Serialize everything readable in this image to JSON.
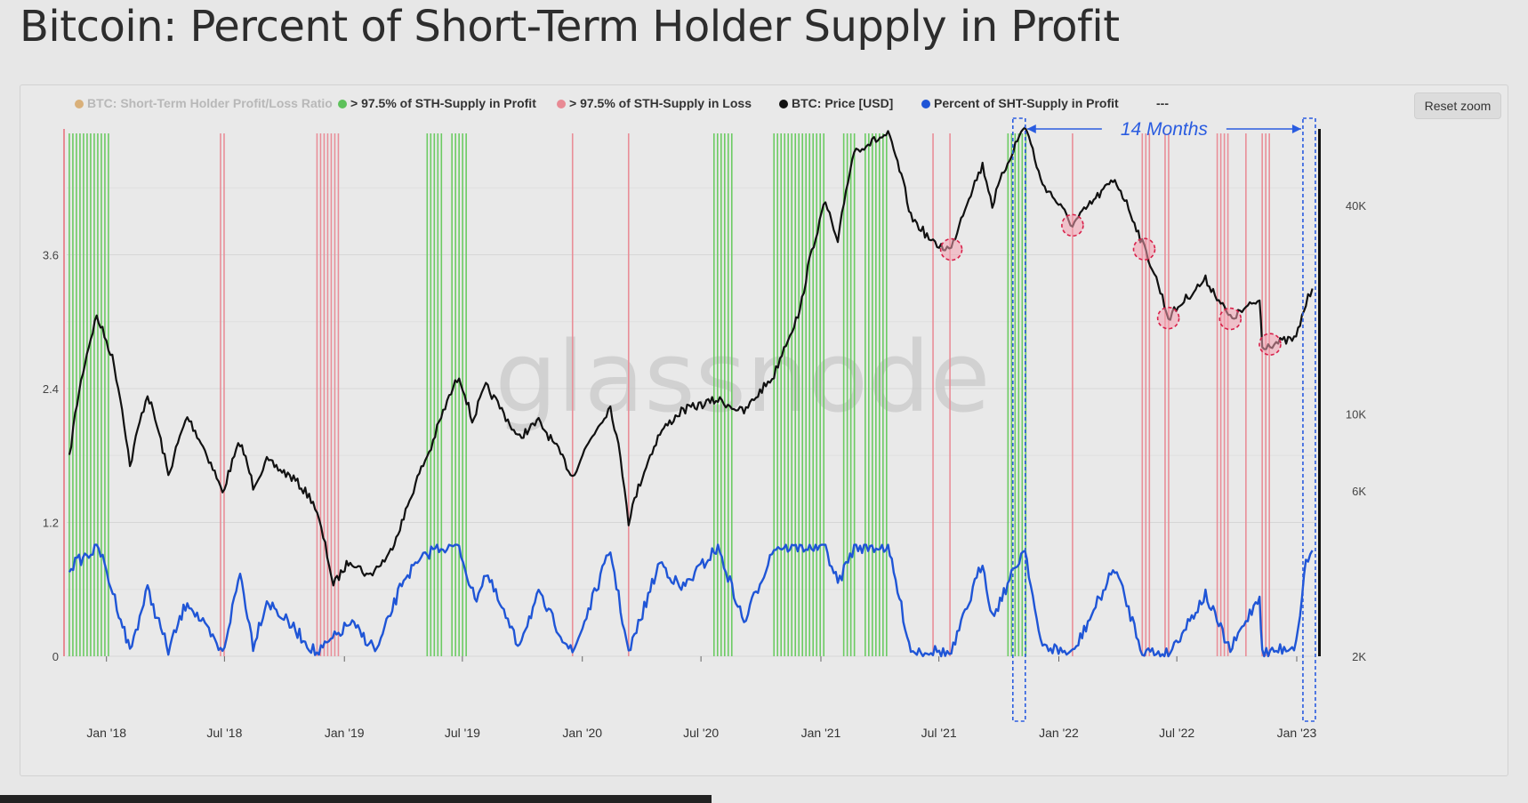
{
  "title": "Bitcoin: Percent of Short-Term Holder Supply in Profit",
  "reset_zoom_label": "Reset zoom",
  "watermark": "glassnode",
  "chart_data": {
    "type": "line",
    "legend_position": "top",
    "legend": [
      {
        "label": "BTC: Short-Term Holder Profit/Loss Ratio",
        "color": "#d9b07a",
        "active": false
      },
      {
        "label": "> 97.5% of STH-Supply in Profit",
        "color": "#5ec15b",
        "active": true
      },
      {
        "label": "> 97.5% of STH-Supply in Loss",
        "color": "#e88a94",
        "active": true
      },
      {
        "label": "BTC: Price [USD]",
        "color": "#111111",
        "active": true
      },
      {
        "label": "Percent of SHT-Supply in Profit",
        "color": "#1f55d6",
        "active": true
      },
      {
        "label": "---",
        "color": "#333333",
        "active": true
      }
    ],
    "x_ticks": [
      "Jan '18",
      "Jul '18",
      "Jan '19",
      "Jul '19",
      "Jan '20",
      "Jul '20",
      "Jan '21",
      "Jul '21",
      "Jan '22",
      "Jul '22",
      "Jan '23"
    ],
    "x_range": [
      "2017-11-01",
      "2023-01-31"
    ],
    "y_left_ticks": [
      "0",
      "1.2",
      "2.4",
      "3.6"
    ],
    "y_left_range": [
      0,
      4.8
    ],
    "y_right_ticks": [
      "2K",
      "6K",
      "10K",
      "40K"
    ],
    "y_right_scale": "log",
    "y_right_range": [
      2000,
      70000
    ],
    "series": [
      {
        "name": "BTC: Price [USD]",
        "color": "#111111",
        "axis": "right",
        "points": [
          [
            "2017-11-05",
            7400
          ],
          [
            "2017-12-17",
            19100
          ],
          [
            "2018-01-10",
            14500
          ],
          [
            "2018-02-06",
            7000
          ],
          [
            "2018-03-05",
            11400
          ],
          [
            "2018-04-06",
            6600
          ],
          [
            "2018-05-05",
            9800
          ],
          [
            "2018-06-28",
            5900
          ],
          [
            "2018-07-25",
            8300
          ],
          [
            "2018-08-14",
            6200
          ],
          [
            "2018-09-04",
            7300
          ],
          [
            "2018-10-15",
            6500
          ],
          [
            "2018-11-14",
            5600
          ],
          [
            "2018-12-15",
            3200
          ],
          [
            "2019-01-10",
            3800
          ],
          [
            "2019-02-07",
            3400
          ],
          [
            "2019-03-10",
            3900
          ],
          [
            "2019-04-02",
            5000
          ],
          [
            "2019-05-14",
            8000
          ],
          [
            "2019-06-26",
            12900
          ],
          [
            "2019-07-16",
            9500
          ],
          [
            "2019-08-06",
            12000
          ],
          [
            "2019-09-24",
            8500
          ],
          [
            "2019-10-26",
            9500
          ],
          [
            "2019-12-17",
            6600
          ],
          [
            "2020-02-13",
            10500
          ],
          [
            "2020-03-12",
            4900
          ],
          [
            "2020-04-29",
            8800
          ],
          [
            "2020-06-01",
            10200
          ],
          [
            "2020-07-27",
            11000
          ],
          [
            "2020-09-05",
            10100
          ],
          [
            "2020-10-21",
            12900
          ],
          [
            "2020-11-30",
            19700
          ],
          [
            "2021-01-08",
            40700
          ],
          [
            "2021-01-27",
            30500
          ],
          [
            "2021-02-21",
            57500
          ],
          [
            "2021-04-14",
            64000
          ],
          [
            "2021-05-19",
            37000
          ],
          [
            "2021-06-22",
            31000
          ],
          [
            "2021-07-20",
            29800
          ],
          [
            "2021-09-06",
            52000
          ],
          [
            "2021-09-21",
            40000
          ],
          [
            "2021-11-10",
            68000
          ],
          [
            "2021-12-04",
            47000
          ],
          [
            "2022-01-22",
            35000
          ],
          [
            "2022-03-28",
            47500
          ],
          [
            "2022-05-09",
            31000
          ],
          [
            "2022-06-18",
            18900
          ],
          [
            "2022-08-14",
            24400
          ],
          [
            "2022-09-21",
            18800
          ],
          [
            "2022-11-05",
            21300
          ],
          [
            "2022-11-09",
            15700
          ],
          [
            "2022-12-31",
            16500
          ],
          [
            "2023-01-15",
            20800
          ],
          [
            "2023-01-25",
            23000
          ]
        ]
      },
      {
        "name": "Percent of SHT-Supply in Profit",
        "color": "#1f55d6",
        "axis": "left",
        "points": [
          [
            "2017-11-05",
            0.8
          ],
          [
            "2017-12-20",
            0.98
          ],
          [
            "2018-01-20",
            0.4
          ],
          [
            "2018-02-06",
            0.05
          ],
          [
            "2018-03-05",
            0.6
          ],
          [
            "2018-04-06",
            0.05
          ],
          [
            "2018-05-05",
            0.5
          ],
          [
            "2018-06-28",
            0.02
          ],
          [
            "2018-07-25",
            0.75
          ],
          [
            "2018-08-14",
            0.1
          ],
          [
            "2018-09-04",
            0.5
          ],
          [
            "2018-10-15",
            0.25
          ],
          [
            "2018-11-20",
            0.02
          ],
          [
            "2019-01-10",
            0.3
          ],
          [
            "2019-02-20",
            0.05
          ],
          [
            "2019-04-02",
            0.7
          ],
          [
            "2019-05-20",
            0.98
          ],
          [
            "2019-06-26",
            0.98
          ],
          [
            "2019-07-20",
            0.5
          ],
          [
            "2019-08-06",
            0.75
          ],
          [
            "2019-09-24",
            0.1
          ],
          [
            "2019-10-26",
            0.55
          ],
          [
            "2019-12-17",
            0.02
          ],
          [
            "2020-02-13",
            0.95
          ],
          [
            "2020-03-12",
            0.02
          ],
          [
            "2020-04-29",
            0.85
          ],
          [
            "2020-06-01",
            0.6
          ],
          [
            "2020-07-27",
            0.98
          ],
          [
            "2020-09-05",
            0.3
          ],
          [
            "2020-10-21",
            0.98
          ],
          [
            "2021-01-08",
            0.98
          ],
          [
            "2021-01-27",
            0.65
          ],
          [
            "2021-02-21",
            0.98
          ],
          [
            "2021-04-14",
            0.98
          ],
          [
            "2021-05-19",
            0.05
          ],
          [
            "2021-06-22",
            0.05
          ],
          [
            "2021-07-20",
            0.02
          ],
          [
            "2021-09-06",
            0.85
          ],
          [
            "2021-09-21",
            0.35
          ],
          [
            "2021-11-10",
            0.98
          ],
          [
            "2021-12-04",
            0.1
          ],
          [
            "2022-01-22",
            0.02
          ],
          [
            "2022-03-28",
            0.8
          ],
          [
            "2022-05-09",
            0.05
          ],
          [
            "2022-06-18",
            0.02
          ],
          [
            "2022-08-14",
            0.55
          ],
          [
            "2022-09-21",
            0.05
          ],
          [
            "2022-11-05",
            0.55
          ],
          [
            "2022-11-09",
            0.02
          ],
          [
            "2022-12-31",
            0.1
          ],
          [
            "2023-01-15",
            0.85
          ],
          [
            "2023-01-25",
            0.95
          ]
        ]
      }
    ],
    "profit_periods": [
      [
        "2017-11-05",
        "2018-01-06"
      ],
      [
        "2019-05-08",
        "2019-06-01"
      ],
      [
        "2019-06-15",
        "2019-07-12"
      ],
      [
        "2020-07-21",
        "2020-08-20"
      ],
      [
        "2020-10-21",
        "2021-01-08"
      ],
      [
        "2021-02-05",
        "2021-02-26"
      ],
      [
        "2021-03-10",
        "2021-04-16"
      ],
      [
        "2021-10-15",
        "2021-11-12"
      ]
    ],
    "loss_periods": [
      [
        "2018-06-25",
        "2018-07-02"
      ],
      [
        "2018-11-20",
        "2018-12-25"
      ],
      [
        "2019-12-17",
        "2019-12-20"
      ],
      [
        "2020-03-12",
        "2020-03-14"
      ],
      [
        "2021-06-22",
        "2021-06-26"
      ],
      [
        "2021-07-18",
        "2021-07-22"
      ],
      [
        "2022-01-22",
        "2022-01-25"
      ],
      [
        "2022-05-09",
        "2022-05-24"
      ],
      [
        "2022-06-13",
        "2022-06-20"
      ],
      [
        "2022-09-01",
        "2022-09-20"
      ],
      [
        "2022-10-15",
        "2022-10-20"
      ],
      [
        "2022-11-09",
        "2022-11-25"
      ]
    ],
    "annotations": {
      "label": "14 Months",
      "bracket_start": "2021-11-01",
      "bracket_end": "2023-01-20",
      "circled_dates": [
        "2021-07-20",
        "2022-01-22",
        "2022-05-12",
        "2022-06-18",
        "2022-09-21",
        "2022-11-21"
      ]
    }
  }
}
